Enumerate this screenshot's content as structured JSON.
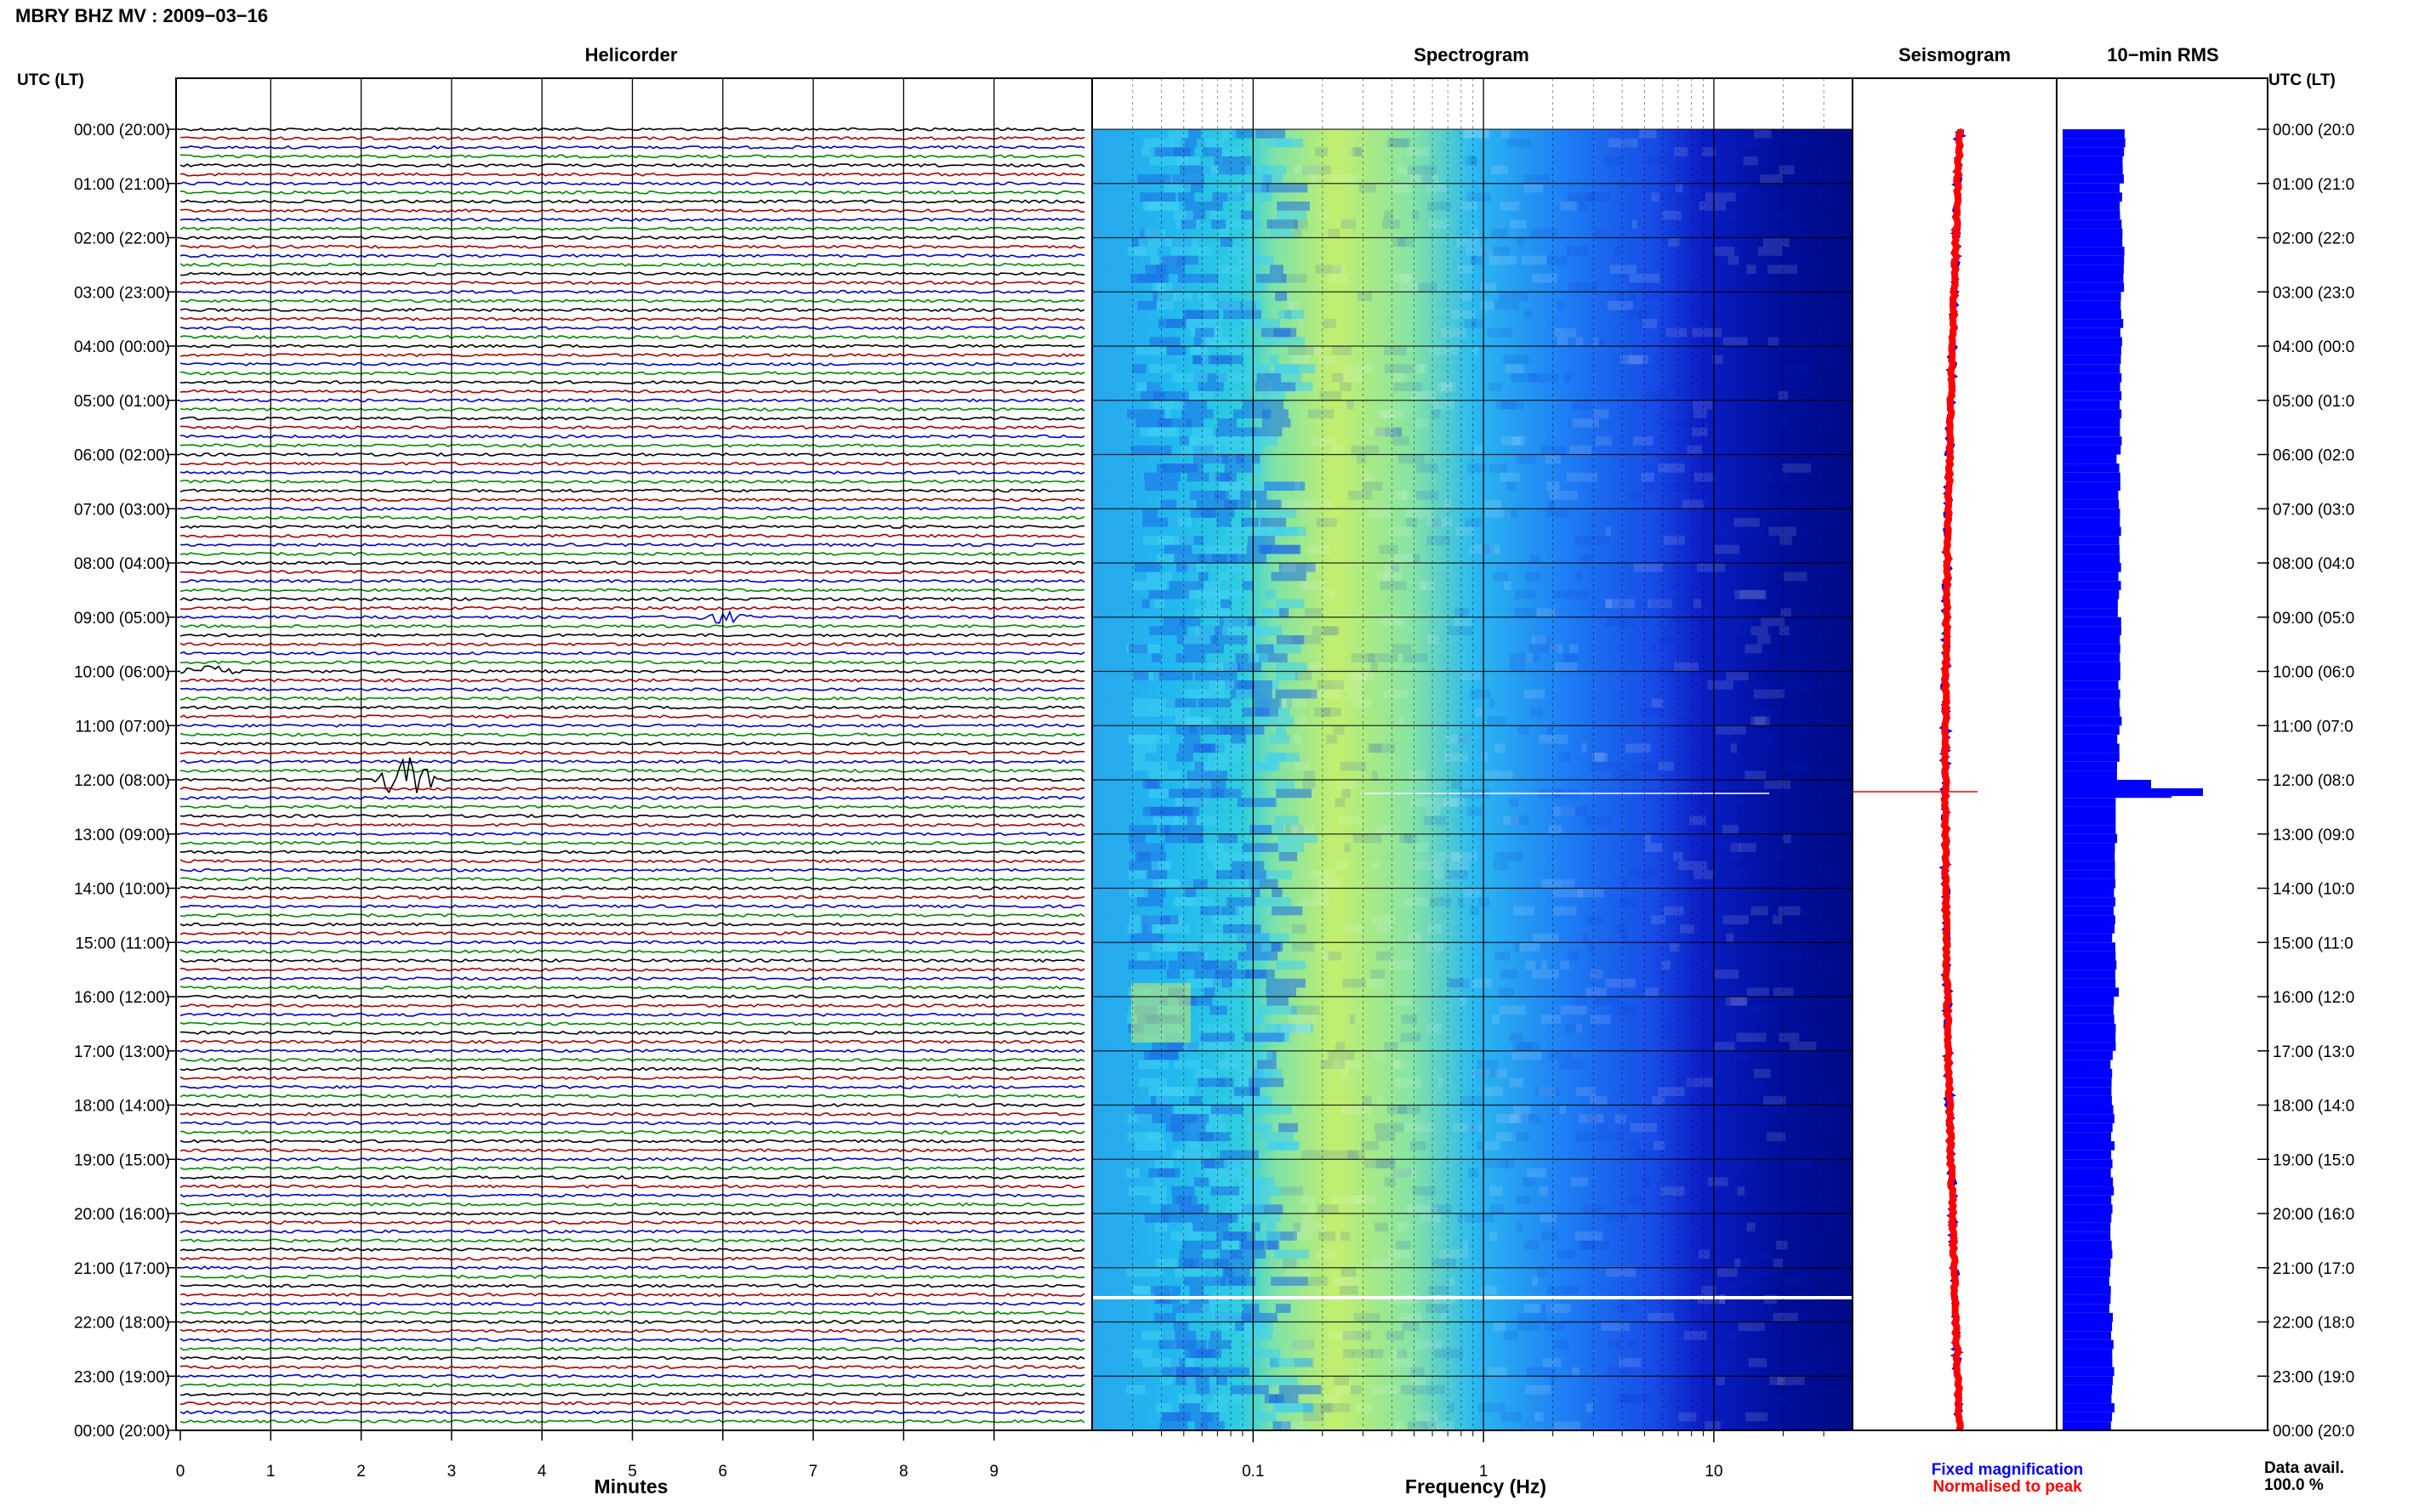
{
  "header": {
    "title": "MBRY BHZ MV : 2009−03−16"
  },
  "panels": {
    "helicorder": "Helicorder",
    "spectrogram": "Spectrogram",
    "seismogram": "Seismogram",
    "rms": "10−min RMS"
  },
  "axes": {
    "left_time_header": "UTC (LT)",
    "right_time_header": "UTC (LT)",
    "time_labels_left": [
      "00:00 (20:00)",
      "01:00 (21:00)",
      "02:00 (22:00)",
      "03:00 (23:00)",
      "04:00 (00:00)",
      "05:00 (01:00)",
      "06:00 (02:00)",
      "07:00 (03:00)",
      "08:00 (04:00)",
      "09:00 (05:00)",
      "10:00 (06:00)",
      "11:00 (07:00)",
      "12:00 (08:00)",
      "13:00 (09:00)",
      "14:00 (10:00)",
      "15:00 (11:00)",
      "16:00 (12:00)",
      "17:00 (13:00)",
      "18:00 (14:00)",
      "19:00 (15:00)",
      "20:00 (16:00)",
      "21:00 (17:00)",
      "22:00 (18:00)",
      "23:00 (19:00)",
      "00:00 (20:00)"
    ],
    "time_labels_right": [
      "00:00 (20:0",
      "01:00 (21:0",
      "02:00 (22:0",
      "03:00 (23:0",
      "04:00 (00:0",
      "05:00 (01:0",
      "06:00 (02:0",
      "07:00 (03:0",
      "08:00 (04:0",
      "09:00 (05:0",
      "10:00 (06:0",
      "11:00 (07:0",
      "12:00 (08:0",
      "13:00 (09:0",
      "14:00 (10:0",
      "15:00 (11:0",
      "16:00 (12:0",
      "17:00 (13:0",
      "18:00 (14:0",
      "19:00 (15:0",
      "20:00 (16:0",
      "21:00 (17:0",
      "22:00 (18:0",
      "23:00 (19:0",
      "00:00 (20:0"
    ],
    "minutes_label": "Minutes",
    "minute_ticks": [
      "0",
      "1",
      "2",
      "3",
      "4",
      "5",
      "6",
      "7",
      "8",
      "9"
    ],
    "frequency_label": "Frequency (Hz)",
    "frequency_ticks": [
      "0.1",
      "1",
      "10"
    ]
  },
  "legend": {
    "fixed": "Fixed magnification",
    "normalised": "Normalised to peak",
    "fixed_color": "#0000ff",
    "normalised_color": "#ff0000"
  },
  "availability": {
    "label": "Data avail.",
    "value": "100.0 %"
  },
  "colors": {
    "trace_cycle": [
      "#000000",
      "#aa0000",
      "#0000cc",
      "#008800"
    ],
    "rms_bar": "#0000ff",
    "grid": "#000000"
  },
  "chart_data": [
    {
      "type": "line",
      "title": "Helicorder",
      "xlabel": "Minutes",
      "xlim": [
        0,
        10
      ],
      "x_ticks": [
        0,
        1,
        2,
        3,
        4,
        5,
        6,
        7,
        8,
        9
      ],
      "rows": 144,
      "row_minutes": 10,
      "trace_colors": [
        "black",
        "dark red",
        "blue",
        "green"
      ],
      "events": [
        {
          "time_utc": "12:00",
          "minute": 2.5,
          "description": "largest transient"
        },
        {
          "time_utc": "09:00",
          "minute": 6.0
        },
        {
          "time_utc": "10:00",
          "minute": 0.3
        }
      ]
    },
    {
      "type": "heatmap",
      "title": "Spectrogram",
      "xlabel": "Frequency (Hz)",
      "x_scale": "log",
      "xlim": [
        0.02,
        40
      ],
      "x_ticks": [
        0.1,
        1,
        10
      ],
      "ylim_utc": [
        "00:00",
        "24:00"
      ],
      "features": [
        {
          "time_utc": "21:30",
          "description": "white gap band"
        },
        {
          "time_utc": "12:00",
          "description": "broadband line"
        }
      ]
    },
    {
      "type": "line",
      "title": "Seismogram",
      "series": [
        {
          "name": "Fixed magnification",
          "color": "blue"
        },
        {
          "name": "Normalised to peak",
          "color": "red"
        }
      ],
      "peak_time_utc": "12:10"
    },
    {
      "type": "bar",
      "title": "10−min RMS",
      "orientation": "horizontal",
      "bins": 144,
      "relative_values": [
        0.9,
        0.85,
        0.88,
        0.87,
        0.86,
        0.84,
        0.82,
        0.86,
        0.83,
        0.85,
        0.84,
        0.81,
        2.0,
        0.78,
        0.75,
        0.8,
        0.76,
        0.72,
        0.74,
        0.73,
        0.72,
        0.71,
        0.73,
        0.74
      ],
      "peak_time_utc": "12:00"
    }
  ]
}
